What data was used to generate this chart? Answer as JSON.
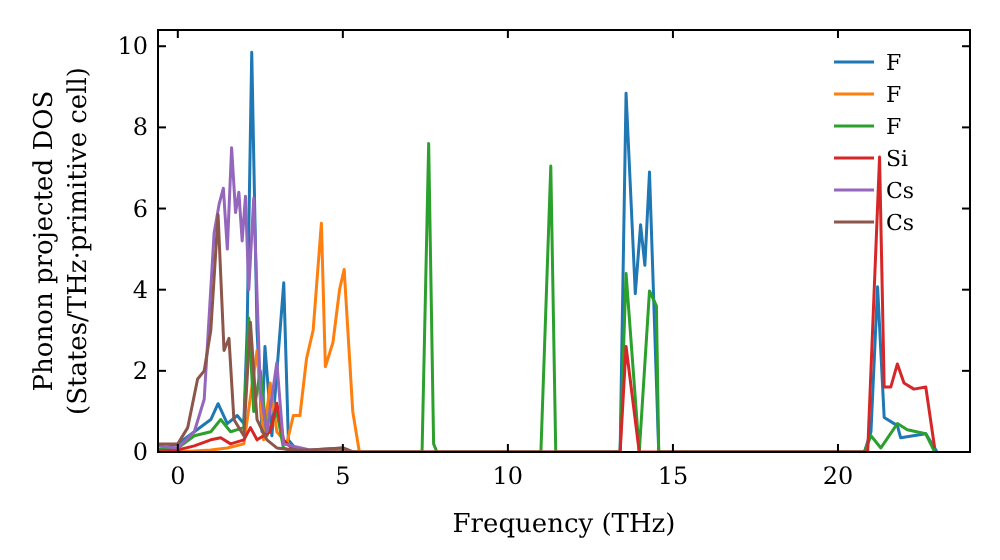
{
  "chart_data": {
    "type": "line",
    "xlabel": "Frequency (THz)",
    "ylabel": "Phonon projected DOS\n(States/THz·primitive cell)",
    "xlim": [
      -0.6,
      24
    ],
    "ylim": [
      0,
      10.4
    ],
    "xticks": [
      0,
      5,
      10,
      15,
      20
    ],
    "yticks": [
      0,
      2,
      4,
      6,
      8,
      10
    ],
    "legend": "top right",
    "grid": false,
    "marker": "none",
    "line_style": "solid",
    "series": [
      {
        "name": "F",
        "color": "#1f77b4",
        "x": [
          -0.6,
          0,
          0.5,
          1,
          1.22,
          1.5,
          1.8,
          2,
          2.1,
          2.24,
          2.4,
          2.55,
          2.64,
          2.85,
          3.21,
          3.35,
          3.6,
          4,
          13.4,
          13.58,
          13.86,
          14.02,
          14.15,
          14.29,
          14.57,
          20.8,
          21,
          21.2,
          21.4,
          21.8,
          21.9,
          22.66,
          22.93,
          23
        ],
        "values": [
          0.05,
          0.2,
          0.5,
          0.8,
          1.19,
          0.7,
          0.9,
          0.7,
          3,
          9.85,
          3,
          0.5,
          2.6,
          0.4,
          4.17,
          0.3,
          0.05,
          0,
          0,
          8.84,
          3.9,
          5.6,
          4.6,
          6.9,
          0,
          0,
          0.5,
          4.07,
          0.85,
          0.65,
          0.35,
          0.45,
          0.1,
          0
        ]
      },
      {
        "name": "F",
        "color": "#ff7f0e",
        "x": [
          -0.6,
          0,
          1,
          1.5,
          2,
          2.4,
          2.6,
          2.8,
          3,
          3.3,
          3.5,
          3.7,
          3.9,
          4.1,
          4.35,
          4.47,
          4.7,
          4.9,
          5.04,
          5.3,
          5.5
        ],
        "values": [
          0,
          0,
          0.05,
          0.1,
          0.2,
          2.5,
          0.3,
          1.7,
          0.5,
          0.2,
          0.9,
          0.9,
          2.3,
          3,
          5.64,
          2.1,
          2.7,
          4,
          4.5,
          1,
          0
        ]
      },
      {
        "name": "F",
        "color": "#2ca02c",
        "x": [
          -0.6,
          0,
          0.5,
          1,
          1.3,
          1.6,
          2,
          2.15,
          2.3,
          2.5,
          2.7,
          3,
          3.2,
          3.5,
          7.4,
          7.6,
          7.75,
          7.85,
          11,
          11.3,
          11.45,
          13.4,
          13.58,
          13.98,
          14.29,
          14.5,
          14.57,
          20.8,
          21,
          21.3,
          21.8,
          22.1,
          22.66,
          22.93
        ],
        "values": [
          0.05,
          0.1,
          0.4,
          0.5,
          0.8,
          0.5,
          0.6,
          3.3,
          1,
          2,
          0.4,
          1,
          0.1,
          0,
          0,
          7.6,
          0.2,
          0,
          0,
          7.05,
          0,
          0,
          4.4,
          0,
          3.97,
          3.6,
          0,
          0,
          0.4,
          0.1,
          0.7,
          0.55,
          0.45,
          0
        ]
      },
      {
        "name": "Si",
        "color": "#d62728",
        "x": [
          -0.6,
          0,
          0.5,
          1,
          1.3,
          1.6,
          2,
          2.2,
          2.4,
          2.8,
          3,
          3.2,
          3.5,
          4,
          13.4,
          13.58,
          13.98,
          20.9,
          21.26,
          21.4,
          21.6,
          21.8,
          22,
          22.3,
          22.66,
          22.93
        ],
        "values": [
          0.02,
          0.05,
          0.15,
          0.3,
          0.35,
          0.2,
          0.3,
          0.6,
          0.3,
          0.5,
          1.2,
          0.3,
          0.05,
          0,
          0,
          2.6,
          0,
          0,
          7.27,
          1.6,
          1.6,
          2.17,
          1.7,
          1.55,
          1.6,
          0.1
        ]
      },
      {
        "name": "Cs",
        "color": "#9467bd",
        "x": [
          -0.6,
          0,
          0.5,
          0.8,
          1.1,
          1.25,
          1.38,
          1.5,
          1.63,
          1.75,
          1.85,
          1.95,
          2.05,
          2.15,
          2.3,
          2.5,
          2.7,
          3,
          3.2,
          4,
          5,
          5.3
        ],
        "values": [
          0.15,
          0.1,
          0.5,
          1.3,
          5.4,
          6.1,
          6.5,
          5,
          7.5,
          5.9,
          6.4,
          5.2,
          6.3,
          4,
          6.26,
          1.5,
          0.5,
          2.2,
          0.2,
          0.05,
          0.1,
          0
        ]
      },
      {
        "name": "Cs",
        "color": "#8c564b",
        "x": [
          -0.6,
          0,
          0.3,
          0.6,
          0.8,
          1,
          1.22,
          1.4,
          1.55,
          1.7,
          2,
          2.2,
          2.4,
          2.7,
          3,
          3.5,
          4,
          5,
          5.3
        ],
        "values": [
          0.2,
          0.2,
          0.6,
          1.8,
          2,
          3,
          5.85,
          2.5,
          2.8,
          0.8,
          0.4,
          3.2,
          0.8,
          0.3,
          0.1,
          0.05,
          0.05,
          0.1,
          0
        ]
      }
    ]
  }
}
